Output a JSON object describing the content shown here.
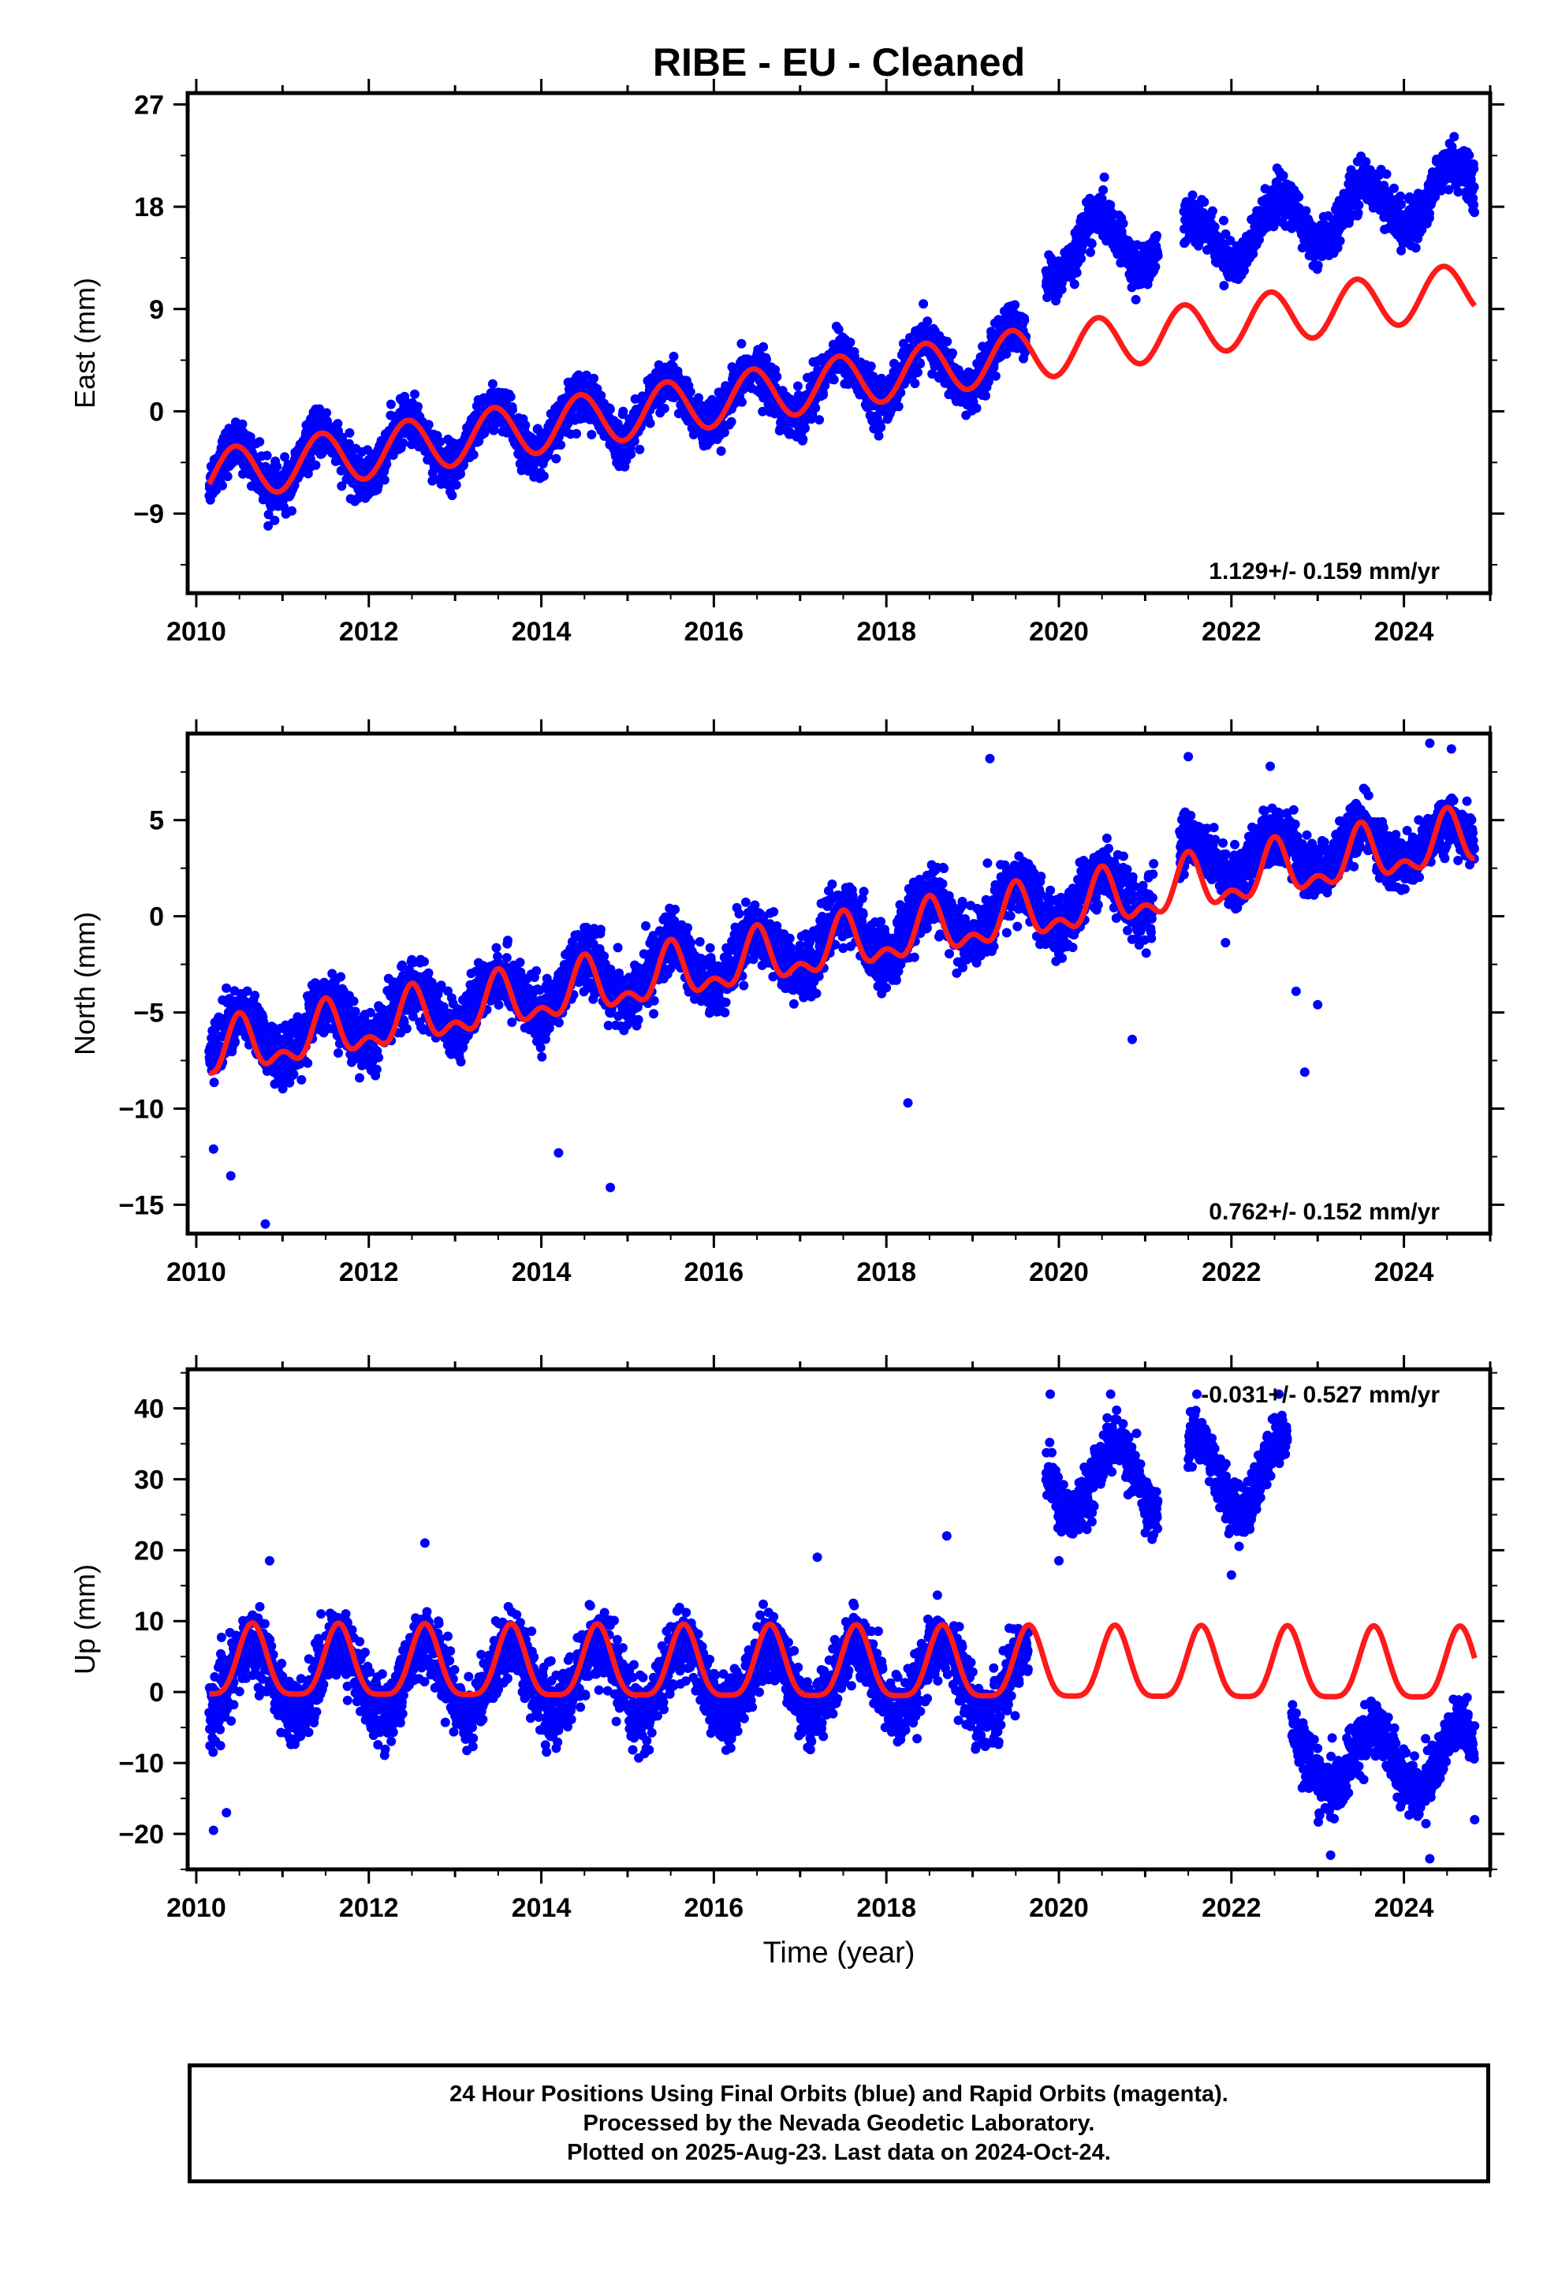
{
  "figure": {
    "title": "RIBE  - EU - Cleaned",
    "colors": {
      "data": "#0000ff",
      "model": "#ff1a1a",
      "axis": "#000000"
    }
  },
  "footer": {
    "lines": [
      "24 Hour Positions Using Final Orbits (blue) and Rapid Orbits (magenta).",
      "Processed by the Nevada Geodetic Laboratory.",
      "Plotted on 2025-Aug-23. Last data on 2024-Oct-24."
    ]
  },
  "chart_data": [
    {
      "id": "east",
      "type": "scatter",
      "ylabel": "East (mm)",
      "xlabel": "",
      "xlim": [
        2009.9,
        2025.0
      ],
      "ylim": [
        -16.0,
        28.0
      ],
      "xticks": [
        2010,
        2012,
        2014,
        2016,
        2018,
        2020,
        2022,
        2024
      ],
      "yticks": [
        -9,
        0,
        9,
        18,
        27
      ],
      "rate_label": "1.129+/- 0.159 mm/yr",
      "rate_position": "bottom-right",
      "grid": false,
      "series": [
        {
          "kind": "points",
          "color": "#0000ff",
          "segments": [
            {
              "start": 2010.15,
              "end": 2019.62,
              "offset": -5.7,
              "trend": 1.129,
              "amplitude": 2.3,
              "phase": 2010.45,
              "noise": 1.8
            },
            {
              "start": 2019.85,
              "end": 2021.15,
              "offset": 14.0,
              "trend": 1.129,
              "amplitude": 2.6,
              "phase": 2020.45,
              "noise": 1.7
            },
            {
              "start": 2021.45,
              "end": 2024.82,
              "offset": 14.5,
              "trend": 1.6,
              "amplitude": 2.4,
              "phase": 2021.55,
              "noise": 1.7
            }
          ]
        },
        {
          "kind": "model-curve",
          "color": "#ff1a1a",
          "start": 2010.15,
          "end": 2024.82,
          "offset": -5.7,
          "trend": 1.129,
          "amplitude": 2.3,
          "phase": 2010.45,
          "anchor_year": 2010.15
        }
      ]
    },
    {
      "id": "north",
      "type": "scatter",
      "ylabel": "North (mm)",
      "xlabel": "",
      "xlim": [
        2009.9,
        2025.0
      ],
      "ylim": [
        -16.5,
        9.5
      ],
      "xticks": [
        2010,
        2012,
        2014,
        2016,
        2018,
        2020,
        2022,
        2024
      ],
      "yticks": [
        -15,
        -10,
        -5,
        0,
        5
      ],
      "rate_label": "0.762+/- 0.152 mm/yr",
      "rate_position": "bottom-right",
      "grid": false,
      "series": [
        {
          "kind": "points",
          "color": "#0000ff",
          "segments": [
            {
              "start": 2010.15,
              "end": 2021.1,
              "offset": -6.8,
              "trend": 0.762,
              "amplitude": 1.3,
              "phase": 2010.5,
              "noise": 1.4
            },
            {
              "start": 2021.4,
              "end": 2024.82,
              "offset": 2.9,
              "trend": 0.3,
              "amplitude": 1.1,
              "phase": 2021.5,
              "noise": 1.3
            }
          ],
          "outliers": [
            [
              2010.2,
              -12.1
            ],
            [
              2010.4,
              -13.5
            ],
            [
              2010.8,
              -16.0
            ],
            [
              2014.2,
              -12.3
            ],
            [
              2014.8,
              -14.1
            ],
            [
              2018.25,
              -9.7
            ],
            [
              2020.85,
              -6.4
            ],
            [
              2022.85,
              -8.1
            ],
            [
              2023.0,
              -4.6
            ],
            [
              2022.75,
              -3.9
            ],
            [
              2021.5,
              8.3
            ],
            [
              2022.45,
              7.8
            ],
            [
              2024.55,
              8.7
            ],
            [
              2024.3,
              9.0
            ],
            [
              2019.2,
              8.2
            ]
          ]
        },
        {
          "kind": "model-curve",
          "color": "#ff1a1a",
          "start": 2010.15,
          "end": 2024.82,
          "offset": -7.2,
          "trend": 0.762,
          "amplitude": 1.2,
          "phase": 2010.5,
          "anchor_year": 2010.15,
          "harmonic": 0.6
        }
      ]
    },
    {
      "id": "up",
      "type": "scatter",
      "ylabel": "Up (mm)",
      "xlabel": "Time (year)",
      "xlim": [
        2009.9,
        2025.0
      ],
      "ylim": [
        -25.0,
        45.5
      ],
      "xticks": [
        2010,
        2012,
        2014,
        2016,
        2018,
        2020,
        2022,
        2024
      ],
      "yticks": [
        -20,
        -10,
        0,
        10,
        20,
        30,
        40
      ],
      "rate_label": "-0.031+/- 0.527 mm/yr",
      "rate_position": "top-right",
      "grid": false,
      "series": [
        {
          "kind": "points",
          "color": "#0000ff",
          "segments": [
            {
              "start": 2010.15,
              "end": 2019.65,
              "offset": 2.0,
              "trend": -0.031,
              "amplitude": 5.0,
              "phase": 2010.65,
              "noise": 4.2
            },
            {
              "start": 2019.85,
              "end": 2021.15,
              "offset": 30.0,
              "trend": 0.0,
              "amplitude": 5.0,
              "phase": 2020.65,
              "noise": 3.3
            },
            {
              "start": 2021.5,
              "end": 2022.65,
              "offset": 30.5,
              "trend": 0.0,
              "amplitude": 5.5,
              "phase": 2021.6,
              "noise": 3.3
            },
            {
              "start": 2022.7,
              "end": 2024.82,
              "offset": -9.5,
              "trend": 0.0,
              "amplitude": 4.5,
              "phase": 2023.65,
              "noise": 3.6
            }
          ],
          "outliers": [
            [
              2010.2,
              -19.5
            ],
            [
              2010.35,
              -17.0
            ],
            [
              2012.65,
              21.0
            ],
            [
              2010.85,
              18.5
            ],
            [
              2018.7,
              22.0
            ],
            [
              2017.2,
              19.0
            ],
            [
              2019.9,
              42.0
            ],
            [
              2020.6,
              42.0
            ],
            [
              2021.6,
              42.0
            ],
            [
              2022.55,
              42.0
            ],
            [
              2020.0,
              18.5
            ],
            [
              2022.0,
              16.5
            ],
            [
              2023.15,
              -23.0
            ],
            [
              2024.3,
              -23.5
            ],
            [
              2024.82,
              -18.0
            ]
          ]
        },
        {
          "kind": "model-curve",
          "color": "#ff1a1a",
          "start": 2010.15,
          "end": 2024.82,
          "offset": 3.5,
          "trend": -0.031,
          "amplitude": 5.0,
          "phase": 2010.65,
          "anchor_year": 2010.15,
          "harmonic": 0.25
        }
      ]
    }
  ]
}
